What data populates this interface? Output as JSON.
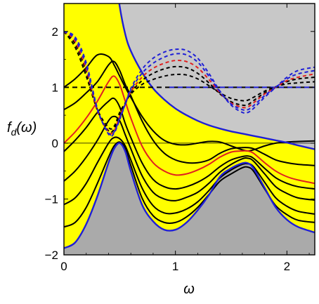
{
  "chart_data": {
    "type": "line",
    "title": "",
    "xlabel": "ω",
    "ylabel_main": "f",
    "ylabel_sub": "d",
    "ylabel_arg": "(ω)",
    "xlim": [
      0,
      2.25
    ],
    "ylim": [
      -2,
      2.5
    ],
    "x_ticks": [
      0,
      1,
      2
    ],
    "x_tick_labels": [
      "0",
      "1",
      "2"
    ],
    "y_ticks": [
      -2,
      -1,
      0,
      1,
      2
    ],
    "y_tick_labels": [
      "−2",
      "−1",
      "0",
      "1",
      "2"
    ],
    "grid": false,
    "legend": "none",
    "colors": {
      "upper_region": "#c8c8c8",
      "lower_region": "#aaaaaa",
      "band": "#ffff00",
      "boundary": "#1f1fd6",
      "solid_curves": "#000000",
      "highlight_curve": "#e02020",
      "dashed_black": "#000000",
      "dashed_red": "#e02020",
      "dashed_blue": "#1f1fd6",
      "zero_line": "#000000"
    },
    "x": [
      0,
      0.1,
      0.2,
      0.3,
      0.4,
      0.45,
      0.5,
      0.55,
      0.6,
      0.7,
      0.8,
      0.9,
      1.0,
      1.1,
      1.2,
      1.3,
      1.4,
      1.5,
      1.6,
      1.65,
      1.7,
      1.8,
      1.9,
      2.0,
      2.1,
      2.25
    ],
    "upper_boundary": [
      3.2,
      3.2,
      3.2,
      3.2,
      3.2,
      3.2,
      2.45,
      1.95,
      1.65,
      1.27,
      0.98,
      0.78,
      0.62,
      0.5,
      0.4,
      0.32,
      0.26,
      0.21,
      0.17,
      0.15,
      0.13,
      0.09,
      0.05,
      0.01,
      -0.04,
      -0.11
    ],
    "lower_boundary": [
      -1.88,
      -1.78,
      -1.45,
      -0.95,
      -0.35,
      -0.1,
      0.0,
      -0.15,
      -0.5,
      -1.1,
      -1.4,
      -1.55,
      -1.55,
      -1.42,
      -1.2,
      -0.93,
      -0.6,
      -0.45,
      -0.36,
      -0.36,
      -0.45,
      -0.8,
      -1.15,
      -1.37,
      -1.5,
      -1.6
    ],
    "solid_series": [
      {
        "values": [
          1.0,
          1.15,
          1.35,
          1.58,
          1.55,
          1.4,
          1.2,
          1.0,
          0.82,
          0.48,
          0.22,
          0.05,
          -0.02,
          -0.03,
          0.0,
          0.03,
          0.02,
          -0.05,
          -0.12,
          -0.14,
          -0.12,
          -0.05,
          0.0,
          0.02,
          0.03,
          0.04
        ]
      },
      {
        "values": [
          0.6,
          0.72,
          0.9,
          1.1,
          1.4,
          1.46,
          1.3,
          1.05,
          0.85,
          0.4,
          0.05,
          -0.18,
          -0.3,
          -0.35,
          -0.35,
          -0.3,
          -0.18,
          -0.1,
          -0.08,
          -0.08,
          -0.1,
          -0.2,
          -0.3,
          -0.35,
          -0.38,
          -0.4
        ]
      },
      {
        "values": [
          0.0,
          0.2,
          0.45,
          0.75,
          1.1,
          1.2,
          1.05,
          0.75,
          0.45,
          -0.05,
          -0.35,
          -0.5,
          -0.57,
          -0.55,
          -0.48,
          -0.38,
          -0.25,
          -0.16,
          -0.14,
          -0.14,
          -0.18,
          -0.35,
          -0.5,
          -0.6,
          -0.66,
          -0.72
        ]
      },
      {
        "values": [
          -0.15,
          0.05,
          0.28,
          0.55,
          0.75,
          0.8,
          0.65,
          0.35,
          0.1,
          -0.35,
          -0.65,
          -0.78,
          -0.82,
          -0.78,
          -0.7,
          -0.58,
          -0.42,
          -0.3,
          -0.24,
          -0.23,
          -0.27,
          -0.45,
          -0.62,
          -0.72,
          -0.78,
          -0.82
        ]
      },
      {
        "values": [
          -0.68,
          -0.5,
          -0.25,
          0.05,
          0.4,
          0.48,
          0.4,
          0.15,
          -0.1,
          -0.58,
          -0.88,
          -1.0,
          -1.03,
          -0.97,
          -0.88,
          -0.72,
          -0.52,
          -0.38,
          -0.28,
          -0.27,
          -0.32,
          -0.55,
          -0.78,
          -0.9,
          -0.98,
          -1.02
        ]
      },
      {
        "values": [
          -1.1,
          -0.98,
          -0.72,
          -0.35,
          0.0,
          0.1,
          0.08,
          -0.05,
          -0.3,
          -0.8,
          -1.12,
          -1.25,
          -1.25,
          -1.18,
          -1.05,
          -0.85,
          -0.62,
          -0.48,
          -0.38,
          -0.37,
          -0.42,
          -0.7,
          -0.98,
          -1.13,
          -1.22,
          -1.27
        ]
      },
      {
        "values": [
          -1.5,
          -1.42,
          -1.15,
          -0.72,
          -0.25,
          -0.05,
          0.02,
          -0.1,
          -0.4,
          -0.98,
          -1.3,
          -1.42,
          -1.42,
          -1.32,
          -1.15,
          -0.92,
          -0.68,
          -0.55,
          -0.44,
          -0.43,
          -0.5,
          -0.82,
          -1.12,
          -1.28,
          -1.38,
          -1.42
        ]
      }
    ],
    "highlight_index": 2,
    "horizontal_dashed_level": 1.0,
    "dashed_series": [
      {
        "color_key": "dashed_black",
        "values": [
          2.0,
          1.72,
          1.2,
          0.6,
          0.28,
          0.3,
          0.55,
          0.72,
          0.88,
          1.05,
          1.14,
          1.2,
          1.23,
          1.22,
          1.15,
          1.03,
          0.9,
          0.8,
          0.76,
          0.77,
          0.82,
          0.93,
          1.01,
          1.06,
          1.08,
          1.1
        ]
      },
      {
        "color_key": "dashed_black",
        "values": [
          2.0,
          1.78,
          1.28,
          0.58,
          0.22,
          0.25,
          0.5,
          0.7,
          0.9,
          1.12,
          1.25,
          1.33,
          1.37,
          1.35,
          1.25,
          1.08,
          0.88,
          0.74,
          0.68,
          0.69,
          0.76,
          0.9,
          1.0,
          1.1,
          1.15,
          1.18
        ]
      },
      {
        "color_key": "dashed_red",
        "values": [
          2.0,
          1.82,
          1.32,
          0.58,
          0.2,
          0.22,
          0.48,
          0.7,
          0.92,
          1.18,
          1.34,
          1.43,
          1.48,
          1.46,
          1.35,
          1.14,
          0.9,
          0.72,
          0.64,
          0.65,
          0.72,
          0.88,
          1.0,
          1.12,
          1.18,
          1.24
        ]
      },
      {
        "color_key": "dashed_blue",
        "values": [
          2.0,
          1.86,
          1.38,
          0.6,
          0.18,
          0.2,
          0.45,
          0.7,
          0.95,
          1.25,
          1.43,
          1.54,
          1.6,
          1.58,
          1.45,
          1.2,
          0.92,
          0.7,
          0.6,
          0.6,
          0.67,
          0.85,
          1.0,
          1.15,
          1.24,
          1.3
        ]
      },
      {
        "color_key": "dashed_blue",
        "values": [
          2.0,
          1.9,
          1.44,
          0.62,
          0.16,
          0.18,
          0.42,
          0.7,
          0.98,
          1.32,
          1.52,
          1.63,
          1.68,
          1.66,
          1.52,
          1.25,
          0.93,
          0.68,
          0.55,
          0.55,
          0.62,
          0.82,
          1.0,
          1.18,
          1.3,
          1.36
        ]
      }
    ]
  }
}
